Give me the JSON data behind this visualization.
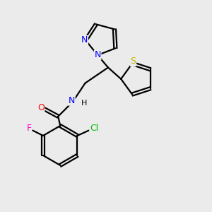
{
  "background_color": "#ebebeb",
  "bond_color": "#000000",
  "atom_colors": {
    "N": "#0000ff",
    "O": "#ff0000",
    "F": "#ff00cc",
    "Cl": "#00bb00",
    "S": "#bbbb00",
    "C": "#000000",
    "H": "#000000"
  },
  "figsize": [
    3.0,
    3.0
  ],
  "dpi": 100
}
